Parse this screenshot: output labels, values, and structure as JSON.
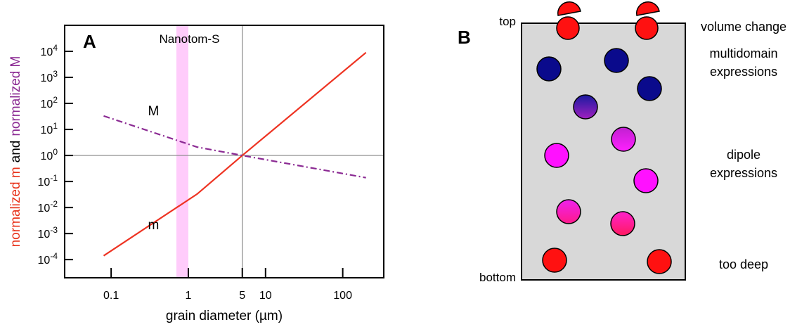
{
  "chart_data": {
    "type": "line",
    "panel_label": "A",
    "ylabel": [
      {
        "text": "normalized m",
        "color": "#e8341c"
      },
      {
        "text": "and",
        "color": "#000000"
      },
      {
        "text": "normalized M",
        "color": "#8b2a93"
      }
    ],
    "xlabel": "grain diameter (µm)",
    "x": [
      0.08,
      1.3,
      5,
      200
    ],
    "series": [
      {
        "name": "m",
        "color": "#ee3322",
        "dash": "solid",
        "values": [
          0.00014,
          0.033,
          1,
          9000
        ]
      },
      {
        "name": "M",
        "color": "#8b2a93",
        "dash": "dashdot",
        "values": [
          33,
          2.1,
          1,
          0.14
        ]
      }
    ],
    "xlog": true,
    "ylog": true,
    "xlim": [
      0.025,
      340
    ],
    "ylim": [
      2e-05,
      100000
    ],
    "xticks": [
      0.1,
      1,
      5,
      10,
      100
    ],
    "yticks": [
      {
        "value": 0.0001,
        "label": "10",
        "exponent": "-4"
      },
      {
        "value": 0.001,
        "label": "10",
        "exponent": "-3"
      },
      {
        "value": 0.01,
        "label": "10",
        "exponent": "-2"
      },
      {
        "value": 0.1,
        "label": "10",
        "exponent": "-1"
      },
      {
        "value": 1,
        "label": "10",
        "exponent": "0"
      },
      {
        "value": 10,
        "label": "10",
        "exponent": "1"
      },
      {
        "value": 100,
        "label": "10",
        "exponent": "2"
      },
      {
        "value": 1000,
        "label": "10",
        "exponent": "3"
      },
      {
        "value": 10000,
        "label": "10",
        "exponent": "4"
      }
    ],
    "reference_lines": {
      "x": 5,
      "y": 1,
      "color": "#888888"
    },
    "band": {
      "label": "Nanotom-S",
      "range": [
        0.7,
        1.0
      ],
      "color": "#ff33ee"
    }
  },
  "diagram": {
    "panel_label": "B",
    "top_label": "top",
    "bottom_label": "bottom",
    "annotations": [
      {
        "lines": [
          "volume change"
        ],
        "color": "#e8141c"
      },
      {
        "lines": [
          "multidomain",
          "expressions"
        ],
        "color": "#111a8c"
      },
      {
        "lines": [
          "dipole",
          "expressions"
        ],
        "color": "#ee11ee"
      },
      {
        "lines": [
          "too deep"
        ],
        "color": "#e8141c"
      }
    ]
  }
}
